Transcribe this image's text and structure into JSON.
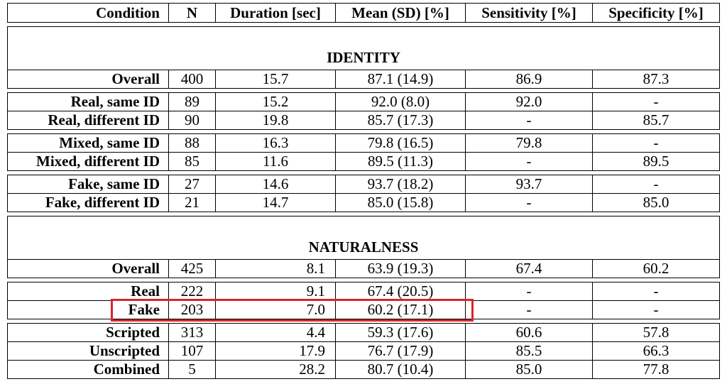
{
  "headers": {
    "condition": "Condition",
    "n": "N",
    "duration": "Duration [sec]",
    "mean_sd": "Mean (SD) [%]",
    "sensitivity": "Sensitivity [%]",
    "specificity": "Specificity [%]"
  },
  "sections": {
    "identity": "IDENTITY",
    "naturalness": "NATURALNESS"
  },
  "identity_rows": [
    {
      "condition": "Overall",
      "n": "400",
      "duration": "15.7",
      "mean_sd": "87.1 (14.9)",
      "sensitivity": "86.9",
      "specificity": "87.3"
    },
    {
      "condition": "Real, same ID",
      "n": "89",
      "duration": "15.2",
      "mean_sd": "92.0 (8.0)",
      "sensitivity": "92.0",
      "specificity": "-"
    },
    {
      "condition": "Real, different ID",
      "n": "90",
      "duration": "19.8",
      "mean_sd": "85.7 (17.3)",
      "sensitivity": "-",
      "specificity": "85.7"
    },
    {
      "condition": "Mixed, same ID",
      "n": "88",
      "duration": "16.3",
      "mean_sd": "79.8 (16.5)",
      "sensitivity": "79.8",
      "specificity": "-"
    },
    {
      "condition": "Mixed, different ID",
      "n": "85",
      "duration": "11.6",
      "mean_sd": "89.5 (11.3)",
      "sensitivity": "-",
      "specificity": "89.5"
    },
    {
      "condition": "Fake, same ID",
      "n": "27",
      "duration": "14.6",
      "mean_sd": "93.7 (18.2)",
      "sensitivity": "93.7",
      "specificity": "-"
    },
    {
      "condition": "Fake, different ID",
      "n": "21",
      "duration": "14.7",
      "mean_sd": "85.0 (15.8)",
      "sensitivity": "-",
      "specificity": "85.0"
    }
  ],
  "naturalness_rows": [
    {
      "condition": "Overall",
      "n": "425",
      "duration": "8.1",
      "mean_sd": "63.9 (19.3)",
      "sensitivity": "67.4",
      "specificity": "60.2"
    },
    {
      "condition": "Real",
      "n": "222",
      "duration": "9.1",
      "mean_sd": "67.4 (20.5)",
      "sensitivity": "-",
      "specificity": "-"
    },
    {
      "condition": "Fake",
      "n": "203",
      "duration": "7.0",
      "mean_sd": "60.2 (17.1)",
      "sensitivity": "-",
      "specificity": "-"
    },
    {
      "condition": "Scripted",
      "n": "313",
      "duration": "4.4",
      "mean_sd": "59.3 (17.6)",
      "sensitivity": "60.6",
      "specificity": "57.8"
    },
    {
      "condition": "Unscripted",
      "n": "107",
      "duration": "17.9",
      "mean_sd": "76.7 (17.9)",
      "sensitivity": "85.5",
      "specificity": "66.3"
    },
    {
      "condition": "Combined",
      "n": "5",
      "duration": "28.2",
      "mean_sd": "80.7 (10.4)",
      "sensitivity": "85.0",
      "specificity": "77.8"
    }
  ],
  "highlight_color": "#d9242b"
}
